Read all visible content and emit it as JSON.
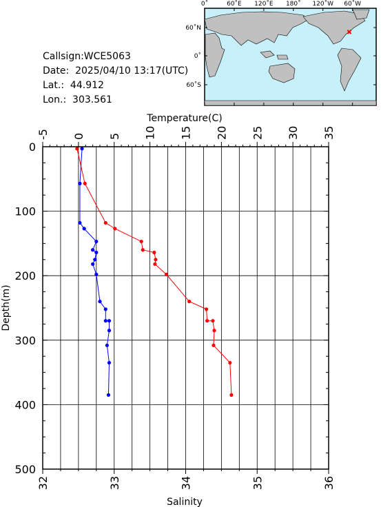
{
  "info": {
    "callsign": "Callsign:WCE5063",
    "date": "Date:  2025/04/10 13:17(UTC)",
    "lat": "Lat.:  44.912",
    "lon": "Lon.:  303.561"
  },
  "map": {
    "top_labels": [
      "0˚",
      "60˚E",
      "120˚E",
      "180˚",
      "120˚W",
      "60˚W"
    ],
    "left_labels": [
      "60˚N",
      "0˚",
      "60˚S"
    ],
    "marker_lat": 44.912,
    "marker_lon": 303.561,
    "ocean_color": "#c8f0fa",
    "land_color": "#c0c0c0",
    "marker_color": "#ff0000"
  },
  "chart_data": {
    "type": "line",
    "ylabel": "Depth(m)",
    "ylim": [
      0,
      500
    ],
    "ytick_labels": [
      "0",
      "100",
      "200",
      "300",
      "400",
      "500"
    ],
    "temperature_axis": {
      "label": "Temperature(C)",
      "xlim": [
        -5,
        35
      ],
      "tick_labels": [
        "-5",
        "0",
        "5",
        "10",
        "15",
        "20",
        "25",
        "30",
        "35"
      ]
    },
    "salinity_axis": {
      "label": "Salinity",
      "xlim": [
        32,
        36
      ],
      "tick_labels": [
        "32",
        "33",
        "34",
        "35",
        "36"
      ]
    },
    "series": [
      {
        "axis": "temperature",
        "color": "#ff0000",
        "points": [
          [
            -0.2,
            3
          ],
          [
            0.9,
            57
          ],
          [
            3.8,
            118
          ],
          [
            5.1,
            127
          ],
          [
            8.8,
            147
          ],
          [
            9.0,
            160
          ],
          [
            10.6,
            164
          ],
          [
            10.8,
            175
          ],
          [
            10.7,
            182
          ],
          [
            12.3,
            198
          ],
          [
            15.5,
            240
          ],
          [
            17.9,
            252
          ],
          [
            18.0,
            270
          ],
          [
            18.8,
            270
          ],
          [
            19.0,
            285
          ],
          [
            18.9,
            308
          ],
          [
            21.2,
            335
          ],
          [
            21.4,
            385
          ]
        ]
      },
      {
        "axis": "salinity",
        "color": "#0000ff",
        "points": [
          [
            32.55,
            3
          ],
          [
            32.52,
            57
          ],
          [
            32.52,
            118
          ],
          [
            32.58,
            127
          ],
          [
            32.75,
            147
          ],
          [
            32.7,
            160
          ],
          [
            32.75,
            164
          ],
          [
            32.73,
            175
          ],
          [
            32.7,
            182
          ],
          [
            32.75,
            198
          ],
          [
            32.8,
            240
          ],
          [
            32.88,
            252
          ],
          [
            32.88,
            270
          ],
          [
            32.93,
            270
          ],
          [
            32.93,
            285
          ],
          [
            32.9,
            308
          ],
          [
            32.93,
            335
          ],
          [
            32.92,
            385
          ]
        ]
      }
    ]
  }
}
